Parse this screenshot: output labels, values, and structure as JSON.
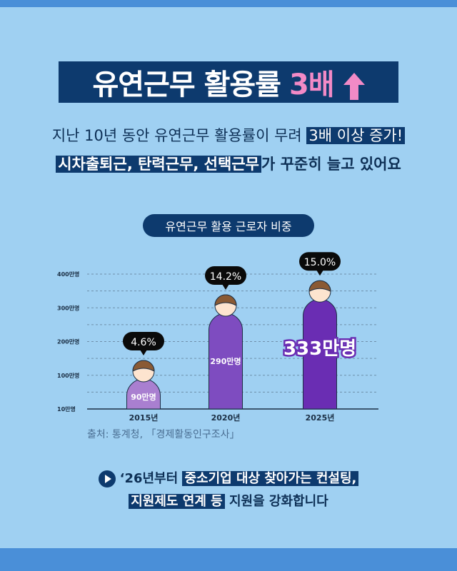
{
  "title": {
    "main": "유연근무 활용률",
    "accent": "3배",
    "arrow_icon": "up-arrow-icon",
    "accent_color": "#f28ac6"
  },
  "subtitle": {
    "line1_plain": "지난 10년 동안 유연근무 활용률이 무려",
    "line1_highlight": "3배 이상 증가!",
    "line2_highlight": "시차출퇴근, 탄력근무, 선택근무",
    "line2_plain": "가 꾸준히 늘고 있어요"
  },
  "chart_data": {
    "type": "bar",
    "title": "유연근무 활용 근로자 비중",
    "categories": [
      "2015년",
      "2020년",
      "2025년"
    ],
    "values": [
      90,
      290,
      333
    ],
    "value_labels": [
      "90만명",
      "290만명",
      "333만명"
    ],
    "share_labels": [
      "4.6%",
      "14.2%",
      "15.0%"
    ],
    "yticks": [
      "10만명",
      "100만명",
      "200만명",
      "300만명",
      "400만명"
    ],
    "ylim": [
      0,
      400
    ],
    "grid": true,
    "colors": [
      "#a97fd0",
      "#7e4cc0",
      "#6a2db3"
    ]
  },
  "source": "출처: 통계청, 「경제활동인구조사」",
  "footer": {
    "play_icon": "play-circle-icon",
    "l1_plain": "‘26년부터",
    "l1_highlight": "중소기업 대상 찾아가는 컨설팅,",
    "l2_highlight": "지원제도 연계 등",
    "l2_plain": "지원을 강화합니다"
  }
}
